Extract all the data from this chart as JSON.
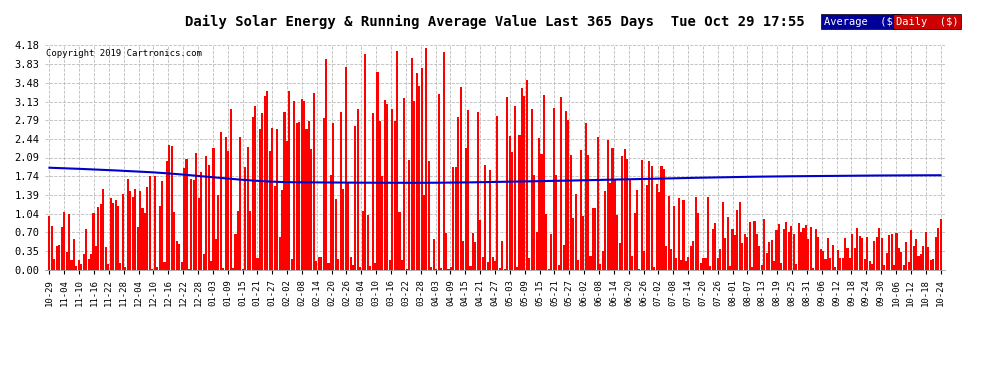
{
  "title": "Daily Solar Energy & Running Average Value Last 365 Days  Tue Oct 29 17:55",
  "copyright": "Copyright 2019 Cartronics.com",
  "ylim": [
    0.0,
    4.18
  ],
  "yticks": [
    0.0,
    0.35,
    0.7,
    1.04,
    1.39,
    1.74,
    2.09,
    2.44,
    2.79,
    3.13,
    3.48,
    3.83,
    4.18
  ],
  "bar_color": "#ff0000",
  "avg_line_color": "#0000cc",
  "background_color": "#ffffff",
  "grid_color": "#bbbbbb",
  "legend_avg_bg": "#000099",
  "legend_daily_bg": "#cc0000",
  "legend_avg_text": "Average  ($)",
  "legend_daily_text": "Daily  ($)",
  "n_days": 365,
  "xtick_labels": [
    "10-29",
    "11-04",
    "11-10",
    "11-16",
    "11-22",
    "11-28",
    "12-04",
    "12-10",
    "12-16",
    "12-22",
    "12-28",
    "01-03",
    "01-09",
    "01-15",
    "01-21",
    "01-27",
    "02-02",
    "02-08",
    "02-14",
    "02-20",
    "02-26",
    "03-04",
    "03-10",
    "03-16",
    "03-22",
    "03-28",
    "04-03",
    "04-09",
    "04-15",
    "04-21",
    "04-27",
    "05-03",
    "05-09",
    "05-15",
    "05-21",
    "05-27",
    "06-02",
    "06-08",
    "06-14",
    "06-20",
    "06-26",
    "07-02",
    "07-08",
    "07-14",
    "07-20",
    "07-26",
    "08-01",
    "08-07",
    "08-13",
    "08-19",
    "08-25",
    "08-31",
    "09-06",
    "09-12",
    "09-18",
    "09-24",
    "09-30",
    "10-06",
    "10-12",
    "10-18",
    "10-24"
  ],
  "avg_points_x": [
    0,
    40,
    100,
    150,
    200,
    250,
    300,
    364
  ],
  "avg_points_y": [
    1.9,
    1.82,
    1.63,
    1.62,
    1.65,
    1.7,
    1.74,
    1.76
  ]
}
